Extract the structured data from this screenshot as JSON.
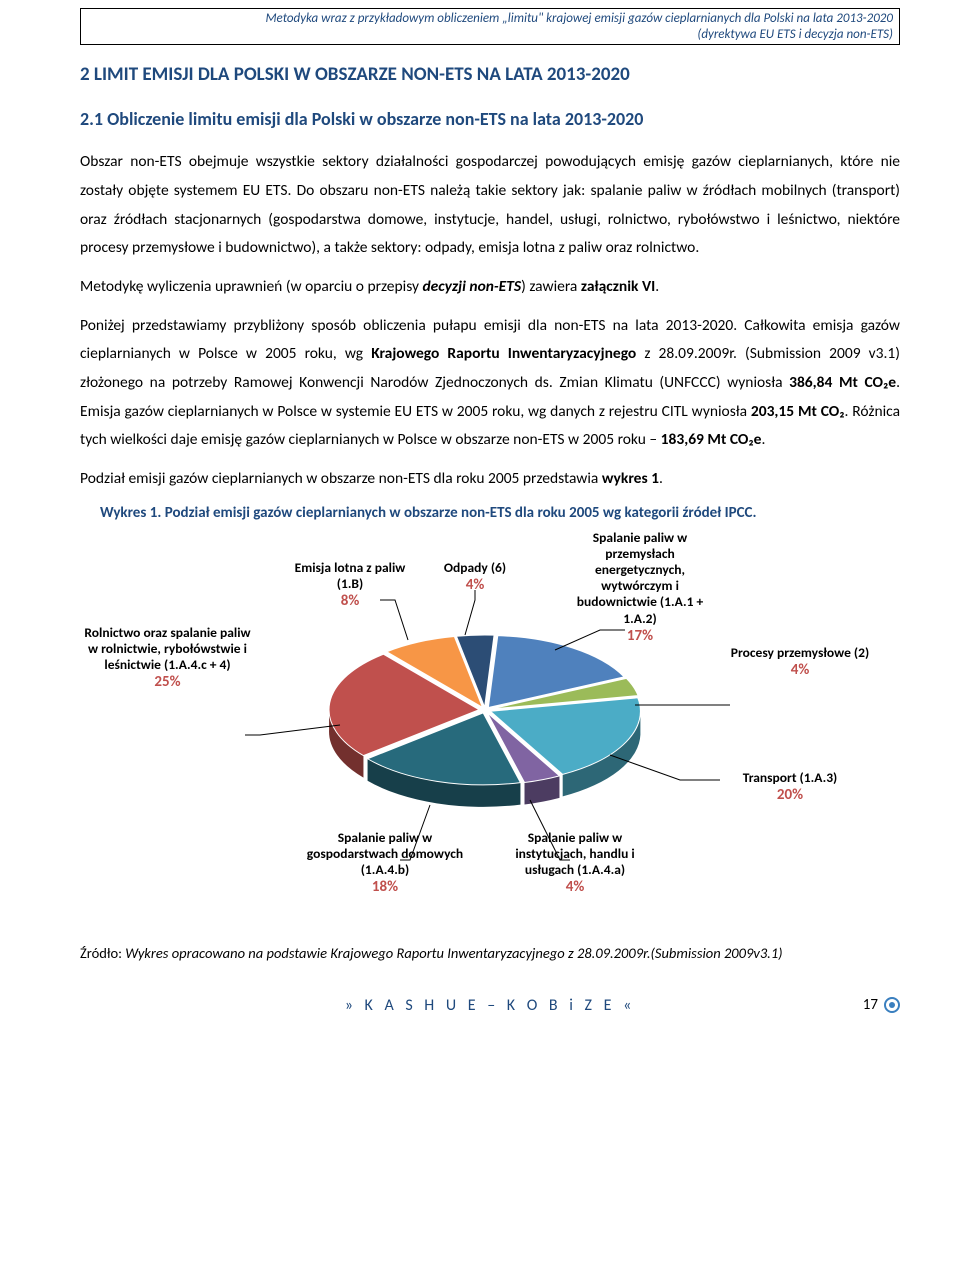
{
  "header": {
    "line1": "Metodyka wraz z przykładowym obliczeniem „limitu\" krajowej emisji gazów cieplarnianych dla Polski na lata 2013-2020",
    "line2": "(dyrektywa EU ETS i decyzja non-ETS)"
  },
  "heading1": "2   LIMIT EMISJI DLA POLSKI W OBSZARZE NON-ETS NA LATA 2013-2020",
  "heading2": "2.1  Obliczenie limitu emisji dla Polski w obszarze non-ETS na lata 2013-2020",
  "body": {
    "p1a": "Obszar non-ETS obejmuje wszystkie sektory działalności gospodarczej powodujących emisję gazów cieplarnianych, które nie zostały objęte systemem EU ETS. Do obszaru non-ETS należą takie sektory jak: spalanie paliw w źródłach mobilnych (transport) oraz źródłach stacjonarnych (gospodarstwa domowe, instytucje, handel, usługi, rolnictwo, rybołówstwo i leśnictwo, niektóre procesy przemysłowe i budownictwo), a także sektory: odpady, emisja lotna z paliw oraz rolnictwo.",
    "p2a": "Metodykę wyliczenia uprawnień (w oparciu o przepisy ",
    "p2b": "decyzji non-ETS",
    "p2c": ") zawiera ",
    "p2d": "załącznik VI",
    "p2e": ".",
    "p3a": "Poniżej przedstawiamy przybliżony sposób obliczenia pułapu emisji dla non-ETS na lata 2013-2020. Całkowita emisja gazów cieplarnianych w Polsce w 2005 roku, wg ",
    "p3b": "Krajowego Raportu Inwentaryzacyjnego",
    "p3c": " z 28.09.2009r. (Submission 2009 v3.1) złożonego na potrzeby Ramowej Konwencji Narodów Zjednoczonych ds. Zmian Klimatu (UNFCCC) wyniosła ",
    "p3d": "386,84 Mt CO₂e",
    "p3e": ". Emisja gazów cieplarnianych w Polsce w systemie EU ETS w 2005 roku, wg danych z rejestru CITL wyniosła ",
    "p3f": "203,15 Mt CO₂",
    "p3g": ". Różnica tych wielkości daje emisję gazów cieplarnianych w Polsce w obszarze non-ETS w 2005 roku – ",
    "p3h": "183,69 Mt CO₂e",
    "p3i": ".",
    "p4a": "Podział emisji gazów cieplarnianych w obszarze non-ETS dla roku 2005 przedstawia ",
    "p4b": "wykres 1",
    "p4c": "."
  },
  "chart": {
    "title": "Wykres 1. Podział emisji gazów cieplarnianych w obszarze non-ETS dla roku 2005 wg kategorii źródeł IPCC.",
    "type": "pie-3d",
    "slices": [
      {
        "label": "Rolnictwo oraz spalanie paliw w rolnictwie, rybołówstwie i leśnictwie (1.A.4.c + 4)",
        "pct": "25%",
        "value": 25,
        "color": "#c0504d"
      },
      {
        "label": "Emisja lotna z paliw (1.B)",
        "pct": "8%",
        "value": 8,
        "color": "#f79646"
      },
      {
        "label": "Odpady (6)",
        "pct": "4%",
        "value": 4,
        "color": "#2c4d75"
      },
      {
        "label": "Spalanie paliw w przemysłach energetycznych, wytwórczym i budownictwie (1.A.1 + 1.A.2)",
        "pct": "17%",
        "value": 17,
        "color": "#4f81bd"
      },
      {
        "label": "Procesy przemysłowe (2)",
        "pct": "4%",
        "value": 4,
        "color": "#9bbb59"
      },
      {
        "label": "Transport (1.A.3)",
        "pct": "20%",
        "value": 20,
        "color": "#4bacc6"
      },
      {
        "label": "Spalanie paliw w instytucjach, handlu i usługach (1.A.4.a)",
        "pct": "4%",
        "value": 4,
        "color": "#8064a2"
      },
      {
        "label": "Spalanie paliw w gospodarstwach domowych (1.A.4.b)",
        "pct": "18%",
        "value": 18,
        "color": "#276a7c"
      }
    ],
    "pct_color": "#c0504d",
    "label_fontsize": 13,
    "background": "#ffffff"
  },
  "source": {
    "prefix": "Źródło: ",
    "text": "Wykres opracowano na podstawie Krajowego Raportu Inwentaryzacyjnego z 28.09.2009r.(Submission 2009v3.1)"
  },
  "footer": {
    "center": "»  K  A  S  H  U  E     –     K  O  B  i  Z  E  «",
    "page": "17"
  }
}
